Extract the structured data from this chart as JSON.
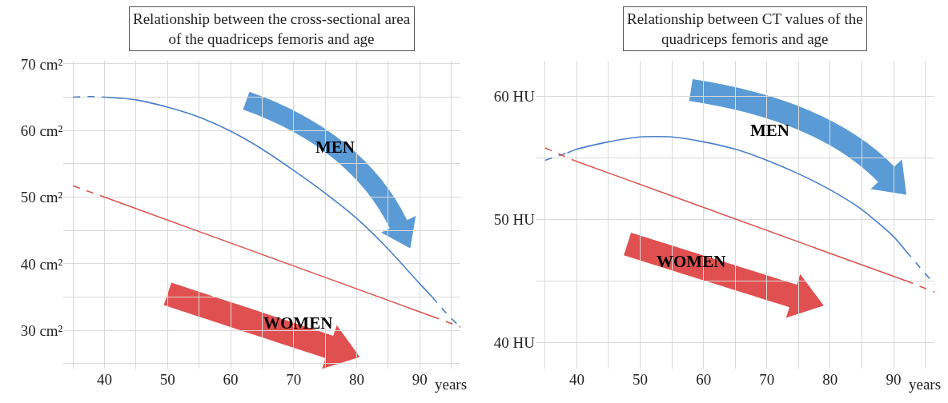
{
  "chart_data": [
    {
      "type": "line",
      "title": "Relationship between the cross-sectional area\nof the quadriceps femoris and age",
      "xlabel": "years",
      "annotations": [
        "MEN",
        "WOMEN"
      ],
      "series": [
        {
          "color": "#4a7fc8",
          "line_style": "dashed",
          "x": [
            35,
            38,
            40
          ],
          "values": [
            65.0,
            65.1,
            65.0
          ]
        },
        {
          "color": "#4a7fc8",
          "line_style": "solid",
          "x": [
            40,
            45,
            50,
            55,
            60,
            65,
            70,
            75,
            80,
            85,
            90,
            92
          ],
          "values": [
            65.0,
            64.6,
            63.5,
            62.0,
            59.9,
            57.2,
            54.0,
            50.6,
            46.8,
            42.2,
            37.0,
            35.0
          ]
        },
        {
          "color": "#4a7fc8",
          "line_style": "dashed",
          "x": [
            92,
            94,
            96.5
          ],
          "values": [
            35.0,
            32.8,
            30.4
          ]
        },
        {
          "color": "#d9534f",
          "line_style": "dashed",
          "x": [
            35,
            40
          ],
          "values": [
            51.7,
            50.0
          ]
        },
        {
          "color": "#d9534f",
          "line_style": "solid",
          "x": [
            40,
            92
          ],
          "values": [
            50.0,
            32.1
          ]
        },
        {
          "color": "#d9534f",
          "line_style": "dashed",
          "x": [
            92,
            96.5
          ],
          "values": [
            32.1,
            30.5
          ]
        }
      ],
      "xlim": [
        33.5,
        96.5
      ],
      "ylim": [
        24.3,
        70.5
      ],
      "xticks": [
        {
          "value": 35,
          "label": null
        },
        40,
        {
          "value": 45,
          "label": null
        },
        50,
        {
          "value": 55,
          "label": null
        },
        60,
        {
          "value": 65,
          "label": null
        },
        70,
        {
          "value": 75,
          "label": null
        },
        80,
        {
          "value": 85,
          "label": null
        },
        90,
        {
          "value": 95,
          "label": null
        }
      ],
      "yticks": [
        {
          "value": 25,
          "label": null
        },
        {
          "value": 30,
          "label": "30 cm²"
        },
        {
          "value": 35,
          "label": null
        },
        {
          "value": 40,
          "label": "40 cm²"
        },
        {
          "value": 45,
          "label": null
        },
        {
          "value": 50,
          "label": "50 cm²"
        },
        {
          "value": 55,
          "label": null
        },
        {
          "value": 60,
          "label": "60 cm²"
        },
        {
          "value": 65,
          "label": null
        },
        {
          "value": 70,
          "label": "70 cm²"
        }
      ],
      "grid": true,
      "marker": "none"
    },
    {
      "type": "line",
      "title": "Relationship between CT values of the\nquadriceps femoris and age",
      "xlabel": "years",
      "annotations": [
        "MEN",
        "WOMEN"
      ],
      "series": [
        {
          "color": "#4a7fc8",
          "line_style": "dashed",
          "x": [
            35,
            38.5
          ],
          "values": [
            54.8,
            55.4
          ]
        },
        {
          "color": "#4a7fc8",
          "line_style": "solid",
          "x": [
            38.5,
            40,
            45,
            50,
            55,
            60,
            65,
            70,
            75,
            80,
            85,
            90,
            92
          ],
          "values": [
            55.4,
            55.7,
            56.3,
            56.7,
            56.7,
            56.3,
            55.7,
            54.8,
            53.7,
            52.4,
            50.8,
            48.6,
            47.4
          ]
        },
        {
          "color": "#4a7fc8",
          "line_style": "dashed",
          "x": [
            92,
            94,
            96.5
          ],
          "values": [
            47.4,
            46.2,
            44.7
          ]
        },
        {
          "color": "#d9534f",
          "line_style": "dashed",
          "x": [
            35,
            39.5
          ],
          "values": [
            55.8,
            54.8
          ]
        },
        {
          "color": "#d9534f",
          "line_style": "solid",
          "x": [
            39.5,
            92
          ],
          "values": [
            54.8,
            45.0
          ]
        },
        {
          "color": "#d9534f",
          "line_style": "dashed",
          "x": [
            92,
            96.5
          ],
          "values": [
            45.0,
            44.1
          ]
        }
      ],
      "xlim": [
        33.5,
        96.5
      ],
      "ylim": [
        37.9,
        62.9
      ],
      "xticks": [
        {
          "value": 35,
          "label": null
        },
        40,
        {
          "value": 45,
          "label": null
        },
        50,
        {
          "value": 55,
          "label": null
        },
        60,
        {
          "value": 65,
          "label": null
        },
        70,
        {
          "value": 75,
          "label": null
        },
        80,
        {
          "value": 85,
          "label": null
        },
        90,
        {
          "value": 95,
          "label": null
        }
      ],
      "yticks": [
        {
          "value": 40,
          "label": "40 HU"
        },
        {
          "value": 45,
          "label": null
        },
        {
          "value": 50,
          "label": "50 HU"
        },
        {
          "value": 55,
          "label": null
        },
        {
          "value": 60,
          "label": "60 HU"
        }
      ],
      "grid": true,
      "marker": "none"
    }
  ]
}
